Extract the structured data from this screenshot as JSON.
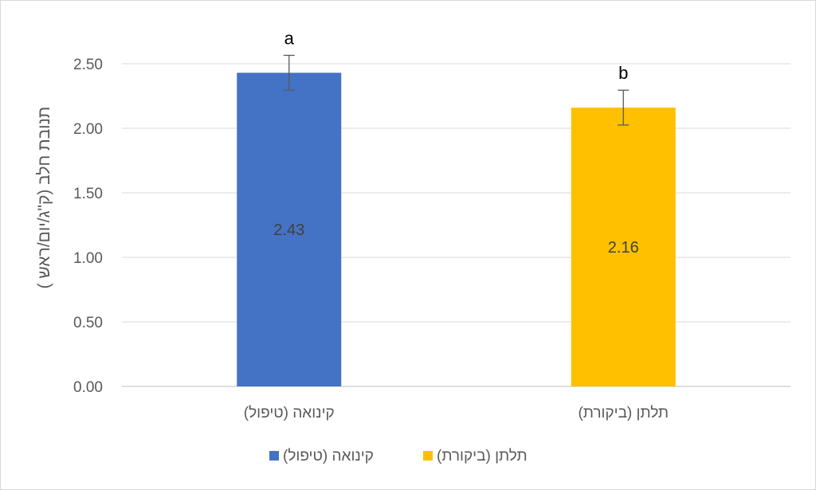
{
  "chart_data": {
    "type": "bar",
    "categories": [
      "קינואה (טיפול)",
      "תלתן (ביקורת)"
    ],
    "values": [
      2.43,
      2.16
    ],
    "error": [
      0.135,
      0.135
    ],
    "significance": [
      "a",
      "b"
    ],
    "data_labels": [
      "2.43",
      "2.16"
    ],
    "colors": [
      "#4472C4",
      "#FFC000"
    ],
    "title": "",
    "xlabel": "",
    "ylabel": "תנובת חלב (ק\"ג/יום/ראש )",
    "ylim": [
      0,
      2.5
    ],
    "yticks": [
      "0.00",
      "0.50",
      "1.00",
      "1.50",
      "2.00",
      "2.50"
    ],
    "grid": true,
    "legend_position": "bottom",
    "legend": [
      "קינואה (טיפול)",
      "תלתן (ביקורת)"
    ]
  }
}
